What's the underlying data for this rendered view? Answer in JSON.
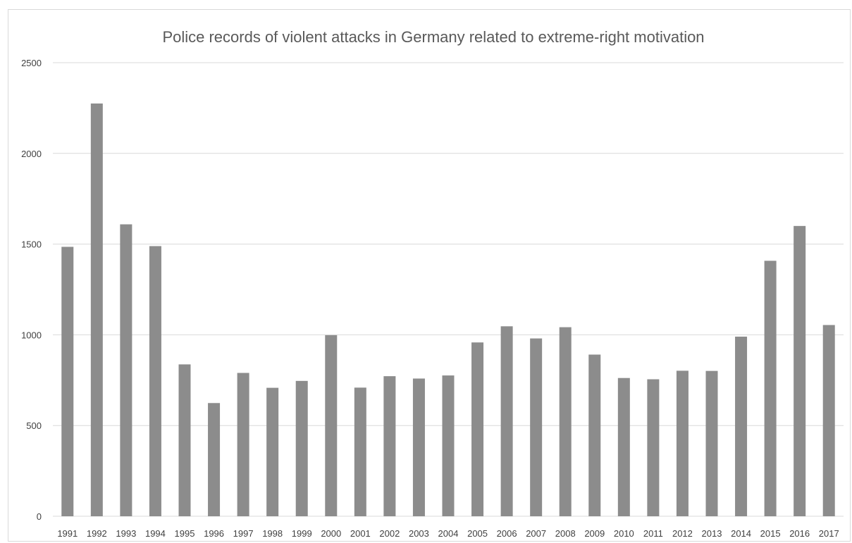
{
  "chart_data": {
    "type": "bar",
    "title": "Police records of violent attacks in Germany related to extreme-right motivation",
    "xlabel": "",
    "ylabel": "",
    "ylim": [
      0,
      2500
    ],
    "yticks": [
      "0",
      "500",
      "1000",
      "1500",
      "2000",
      "2500"
    ],
    "grid": true,
    "bar_color": "#8c8c8c",
    "categories": [
      "1991",
      "1992",
      "1993",
      "1994",
      "1995",
      "1996",
      "1997",
      "1998",
      "1999",
      "2000",
      "2001",
      "2002",
      "2003",
      "2004",
      "2005",
      "2006",
      "2007",
      "2008",
      "2009",
      "2010",
      "2011",
      "2012",
      "2013",
      "2014",
      "2015",
      "2016",
      "2017"
    ],
    "values": [
      1485,
      2275,
      1609,
      1489,
      837,
      624,
      790,
      708,
      746,
      998,
      709,
      772,
      759,
      776,
      958,
      1047,
      980,
      1042,
      891,
      762,
      755,
      802,
      801,
      990,
      1408,
      1600,
      1054
    ]
  }
}
